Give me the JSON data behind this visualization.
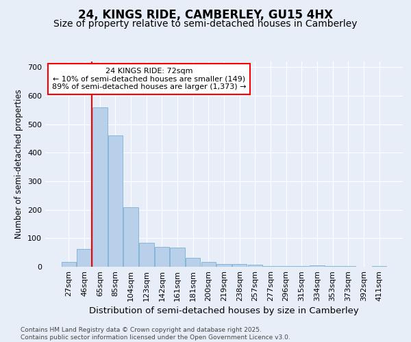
{
  "title": "24, KINGS RIDE, CAMBERLEY, GU15 4HX",
  "subtitle": "Size of property relative to semi-detached houses in Camberley",
  "xlabel": "Distribution of semi-detached houses by size in Camberley",
  "ylabel": "Number of semi-detached properties",
  "categories": [
    "27sqm",
    "46sqm",
    "65sqm",
    "85sqm",
    "104sqm",
    "123sqm",
    "142sqm",
    "161sqm",
    "181sqm",
    "200sqm",
    "219sqm",
    "238sqm",
    "257sqm",
    "277sqm",
    "296sqm",
    "315sqm",
    "334sqm",
    "353sqm",
    "373sqm",
    "392sqm",
    "411sqm"
  ],
  "values": [
    18,
    62,
    560,
    460,
    210,
    85,
    70,
    68,
    32,
    16,
    10,
    10,
    8,
    3,
    3,
    3,
    5,
    3,
    3,
    0,
    3
  ],
  "bar_color": "#b8d0ea",
  "bar_edge_color": "#7aafd4",
  "vline_x_index": 2,
  "vline_color": "red",
  "annotation_title": "24 KINGS RIDE: 72sqm",
  "annotation_line1": "← 10% of semi-detached houses are smaller (149)",
  "annotation_line2": "89% of semi-detached houses are larger (1,373) →",
  "annotation_box_color": "#ffffff",
  "annotation_box_edge": "red",
  "ylim": [
    0,
    720
  ],
  "yticks": [
    0,
    100,
    200,
    300,
    400,
    500,
    600,
    700
  ],
  "background_color": "#e8eef8",
  "plot_bg_color": "#e8eef8",
  "footer_line1": "Contains HM Land Registry data © Crown copyright and database right 2025.",
  "footer_line2": "Contains public sector information licensed under the Open Government Licence v3.0.",
  "title_fontsize": 12,
  "subtitle_fontsize": 10,
  "tick_fontsize": 8,
  "ylabel_fontsize": 8.5,
  "xlabel_fontsize": 9.5,
  "annotation_fontsize": 8,
  "footer_fontsize": 6.5
}
